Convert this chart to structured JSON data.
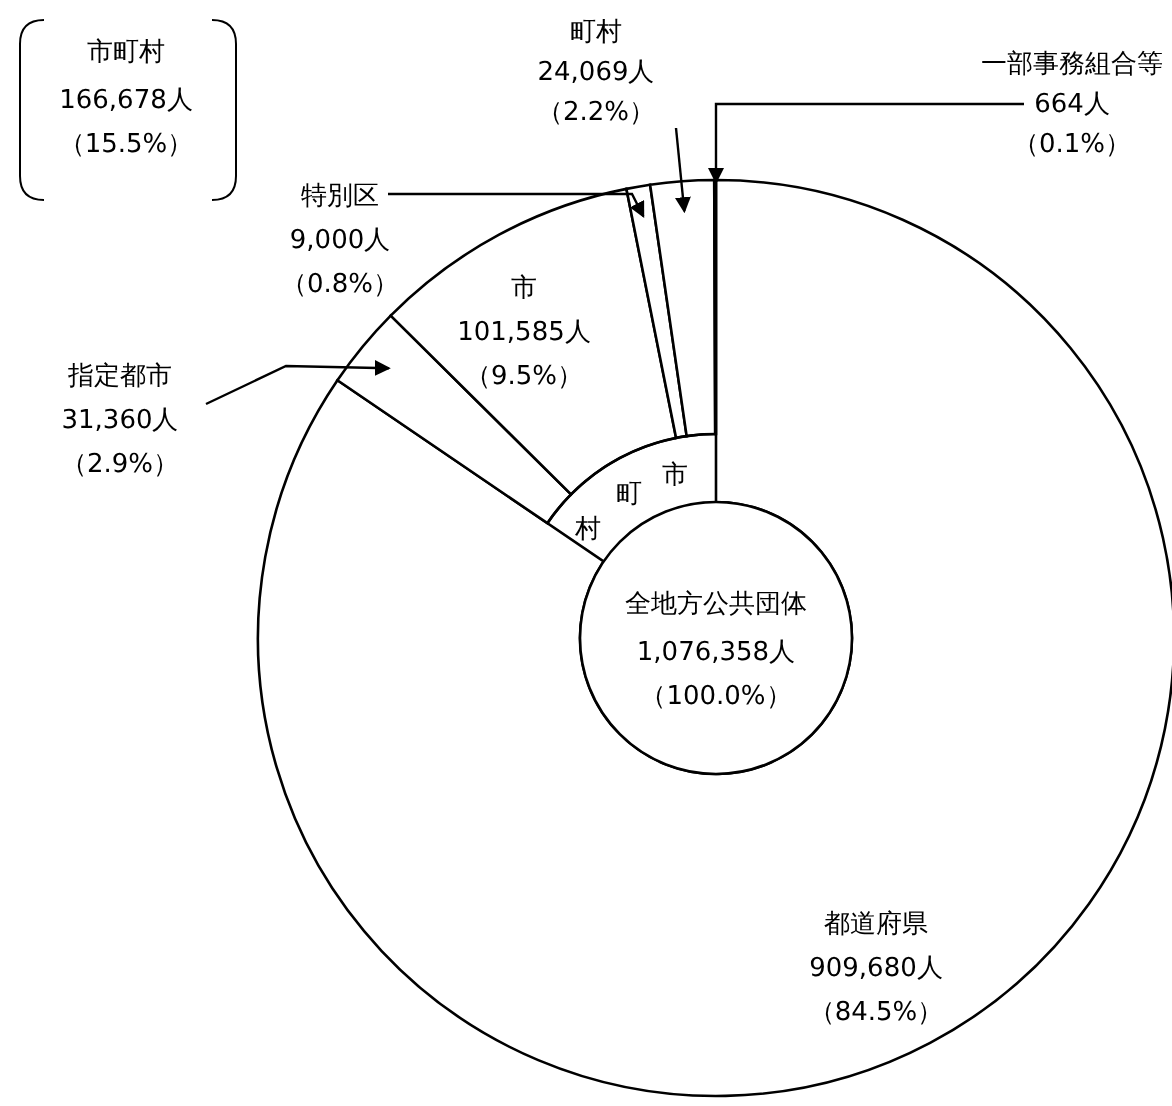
{
  "chart_data": {
    "type": "donut",
    "categories": [
      "都道府県",
      "指定都市",
      "市",
      "特別区",
      "町村",
      "一部事務組合等"
    ],
    "values": [
      909680,
      31360,
      101585,
      9000,
      24069,
      664
    ],
    "colors": [
      "#ffffff",
      "#ffffff",
      "#ffffff",
      "#ffffff",
      "#ffffff",
      "#ffffff"
    ],
    "value_labels": [
      "909,680人（84.5%）",
      "31,360人（2.9%）",
      "101,585人（9.5%）",
      "9,000人（0.8%）",
      "24,069人（2.2%）",
      "664人（0.1%）"
    ],
    "annotations": [
      "全地方公共団体",
      "1,076,358人（100.0%）",
      "市町村",
      "166,678人（15.5%）",
      "市",
      "町",
      "村"
    ]
  }
}
